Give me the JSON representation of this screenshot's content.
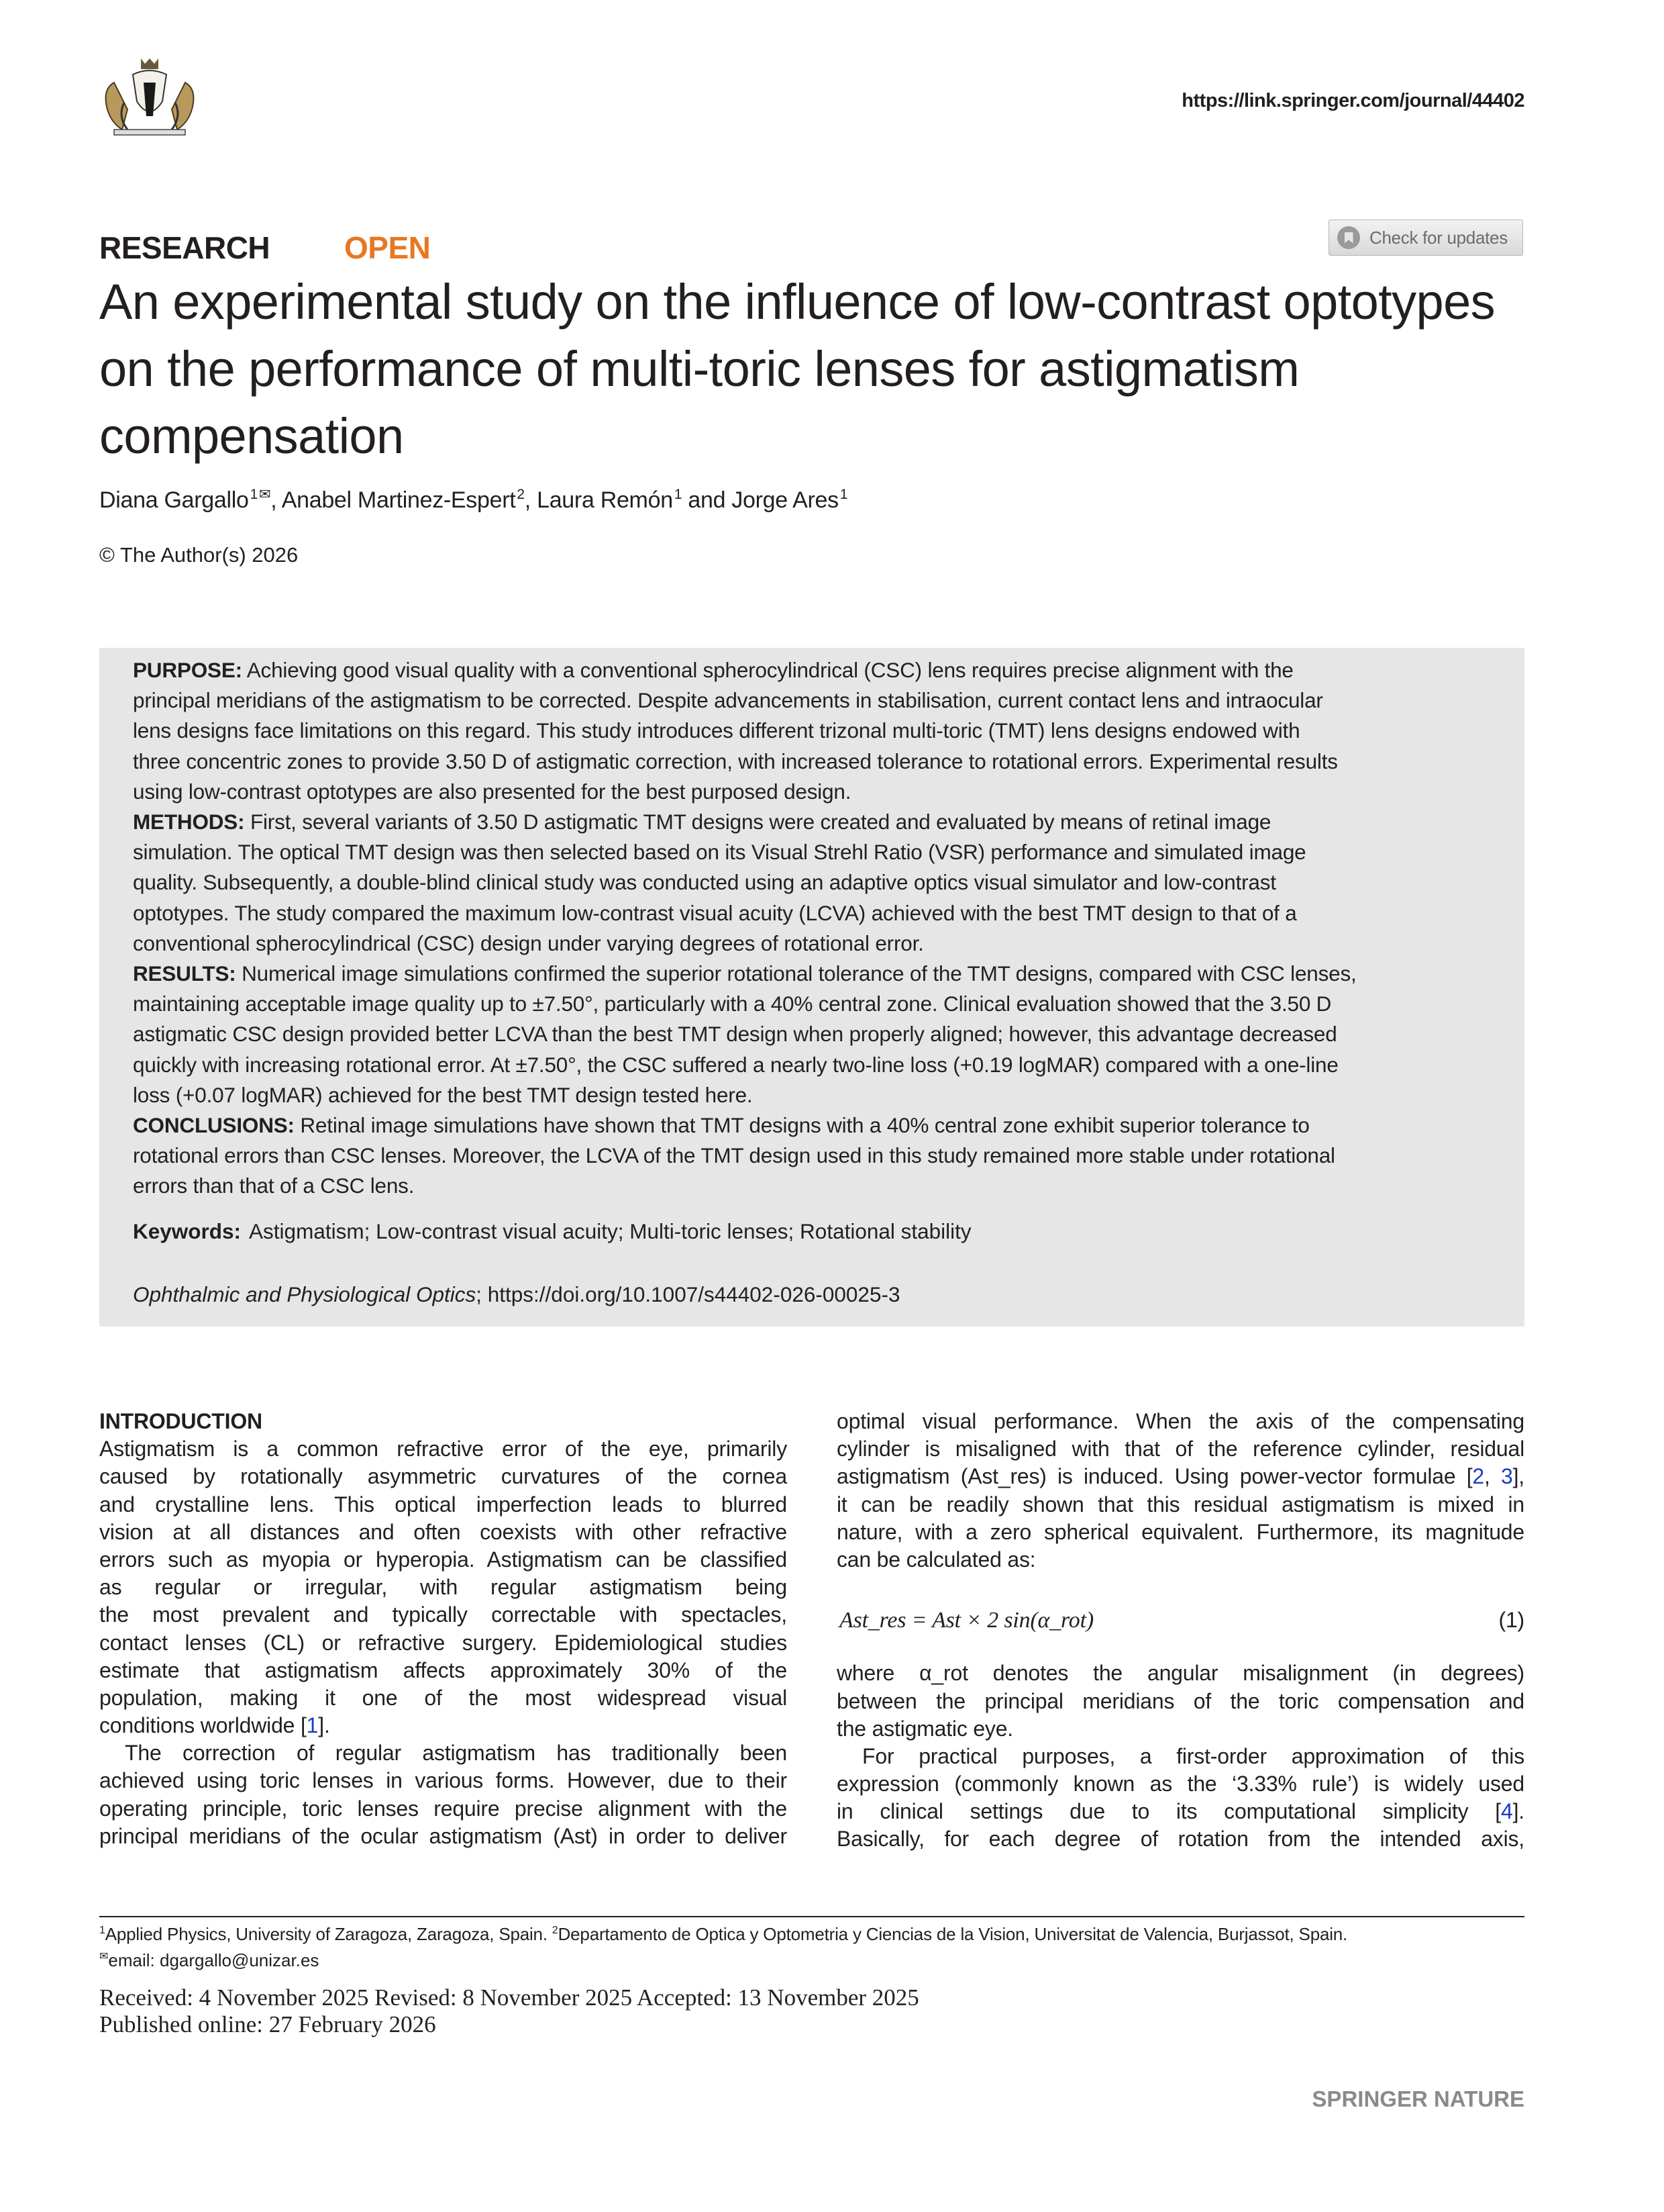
{
  "header": {
    "logo_alt": "coat of arms",
    "journal_url": "https://link.springer.com/journal/44402",
    "article_type": "RESEARCH",
    "access": "OPEN",
    "check_updates": "Check for updates",
    "accent_color": "#e87722"
  },
  "article": {
    "title": "An experimental study on the influence of low-contrast optotypes on the performance of multi-toric lenses for astigmatism compensation",
    "authors": [
      {
        "name": "Diana Gargallo",
        "aff": "1",
        "mark": "✉"
      },
      {
        "name": "Anabel Martinez-Espert",
        "aff": "2"
      },
      {
        "name": "Laura Remón",
        "aff": "1"
      },
      {
        "name": "Jorge Ares",
        "aff": "1"
      }
    ],
    "author_sep": [
      ", ",
      ", ",
      " and "
    ],
    "copyright": "© The Author(s) 2026"
  },
  "abstract": {
    "sections": [
      {
        "label": "PURPOSE:",
        "lines": [
          " Achieving good visual quality with a conventional spherocylindrical (CSC) lens requires precise alignment with the",
          "principal meridians of the astigmatism to be corrected. Despite advancements in stabilisation, current contact lens and intraocular",
          "lens designs face limitations on this regard. This study introduces different trizonal multi-toric (TMT) lens designs endowed with",
          "three concentric zones to provide 3.50 D of astigmatic correction, with increased tolerance to rotational errors. Experimental results",
          "using low-contrast optotypes are also presented for the best purposed design."
        ]
      },
      {
        "label": "METHODS:",
        "lines": [
          " First, several variants of 3.50 D astigmatic TMT designs were created and evaluated by means of retinal image",
          "simulation. The optical TMT design was then selected based on its Visual Strehl Ratio (VSR) performance and simulated image",
          "quality. Subsequently, a double-blind clinical study was conducted using an adaptive optics visual simulator and low-contrast",
          "optotypes. The study compared the maximum low-contrast visual acuity (LCVA) achieved with the best TMT design to that of a",
          "conventional spherocylindrical (CSC) design under varying degrees of rotational error."
        ]
      },
      {
        "label": "RESULTS:",
        "lines": [
          " Numerical image simulations confirmed the superior rotational tolerance of the TMT designs, compared with CSC lenses,",
          "maintaining acceptable image quality up to ±7.50°, particularly with a 40% central zone. Clinical evaluation showed that the 3.50 D",
          "astigmatic CSC design provided better LCVA than the best TMT design when properly aligned; however, this advantage decreased",
          "quickly with increasing rotational error. At ±7.50°, the CSC suffered a nearly two-line loss (+0.19 logMAR) compared with a one-line",
          "loss (+0.07 logMAR) achieved for the best TMT design tested here."
        ]
      },
      {
        "label": "CONCLUSIONS:",
        "lines": [
          " Retinal image simulations have shown that TMT designs with a 40% central zone exhibit superior tolerance to",
          "rotational errors than CSC lenses. Moreover, the LCVA of the TMT design used in this study remained more stable under rotational",
          "errors than that of a CSC lens."
        ]
      }
    ],
    "keywords_label": "Keywords:",
    "keywords": "Astigmatism; Low-contrast visual acuity; Multi-toric lenses; Rotational stability",
    "journal": "Ophthalmic and Physiological Optics",
    "doi": "; https://doi.org/10.1007/s44402-026-00025-3"
  },
  "body": {
    "heading": "INTRODUCTION",
    "left_lines": [
      {
        "t": "Astigmatism is a common refractive error of the eye, primarily"
      },
      {
        "t": "caused by rotationally asymmetric curvatures of the cornea"
      },
      {
        "t": "and crystalline lens. This optical imperfection leads to blurred"
      },
      {
        "t": "vision at all distances and often coexists with other refractive"
      },
      {
        "t": "errors such as myopia or hyperopia. Astigmatism can be classified"
      },
      {
        "t": "as regular or irregular, with regular astigmatism being"
      },
      {
        "t": "the most prevalent and typically correctable with spectacles,"
      },
      {
        "t": "contact lenses (CL) or refractive surgery. Epidemiological studies"
      },
      {
        "t": "estimate that astigmatism affects approximately 30% of the"
      },
      {
        "t": "population, making it one of the most widespread visual"
      },
      {
        "t": "conditions worldwide [1].",
        "last": true
      },
      {
        "t": "The correction of regular astigmatism has traditionally been",
        "indent": true
      },
      {
        "t": "achieved using toric lenses in various forms. However, due to their"
      },
      {
        "t": "operating principle, toric lenses require precise alignment with the"
      },
      {
        "t": "principal meridians of the ocular astigmatism (Ast) in order to deliver"
      }
    ],
    "right_lines_a": [
      {
        "t": "optimal visual performance. When the axis of the compensating"
      },
      {
        "t": "cylinder is misaligned with that of the reference cylinder, residual"
      },
      {
        "t": "astigmatism (Ast_res) is induced. Using power-vector formulae [2, 3],"
      },
      {
        "t": "it can be readily shown that this residual astigmatism is mixed in"
      },
      {
        "t": "nature, with a zero spherical equivalent. Furthermore, its magnitude"
      },
      {
        "t": "can be calculated as:",
        "last": true
      }
    ],
    "equation": "Ast_res = Ast × 2 sin(α_rot)",
    "equation_number": "(1)",
    "right_lines_b": [
      {
        "t": "where α_rot denotes the angular misalignment (in degrees)"
      },
      {
        "t": "between the principal meridians of the toric compensation and"
      },
      {
        "t": "the astigmatic eye.",
        "last": true
      },
      {
        "t": "For practical purposes, a first-order approximation of this",
        "indent": true
      },
      {
        "t": "expression (commonly known as the ‘3.33% rule’) is widely used"
      },
      {
        "t": "in clinical settings due to its computational simplicity [4]."
      },
      {
        "t": "Basically, for each degree of rotation from the intended axis,"
      }
    ]
  },
  "footer": {
    "affiliation_1": "Applied Physics, University of Zaragoza, Zaragoza, Spain.",
    "affiliation_2": "Departamento de Optica y Optometria y Ciencias de la Vision, Universitat de Valencia, Burjassot, Spain.",
    "email": "email: dgargallo@unizar.es",
    "dates": "Received: 4 November 2025 Revised: 8 November 2025 Accepted: 13 November 2025",
    "published": "Published online: 27 February 2026",
    "publisher_logo": "SPRINGER NATURE"
  }
}
